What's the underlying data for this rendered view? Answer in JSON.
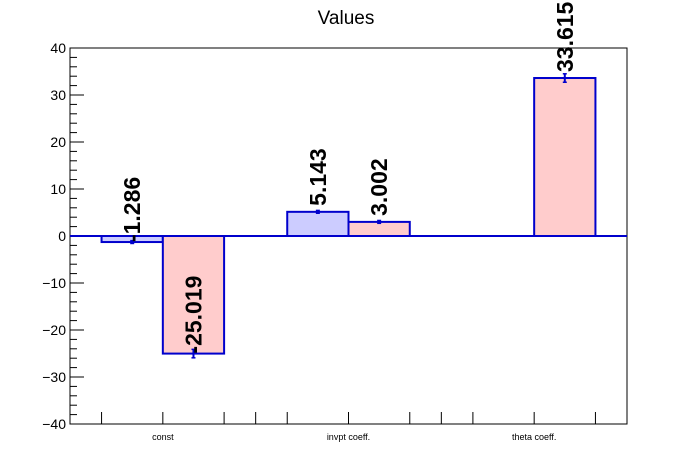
{
  "chart_data": {
    "type": "bar",
    "title": "Values",
    "categories": [
      "const",
      "invpt coeff.",
      "theta coeff."
    ],
    "series": [
      {
        "values": [
          -1.286,
          5.143,
          null
        ],
        "errors": [
          0.3,
          0.3,
          null
        ],
        "color": "#ccccff"
      },
      {
        "values": [
          -25.019,
          3.002,
          33.615
        ],
        "errors": [
          0.9,
          0.3,
          0.9
        ],
        "color": "#ffcccc"
      }
    ],
    "value_labels": [
      [
        "-1.286",
        "5.143",
        ""
      ],
      [
        "-25.019",
        "3.002",
        "33.615"
      ]
    ],
    "ylim": [
      -40,
      40
    ],
    "yticks": [
      -40,
      -30,
      -20,
      -10,
      0,
      10,
      20,
      30,
      40
    ],
    "ytick_labels": [
      "−40",
      "−30",
      "−20",
      "−10",
      "0",
      "10",
      "20",
      "30",
      "40"
    ],
    "xlabel": "",
    "ylabel": "",
    "bar_stroke": "#0000cc",
    "grid": false,
    "legend": "none"
  }
}
